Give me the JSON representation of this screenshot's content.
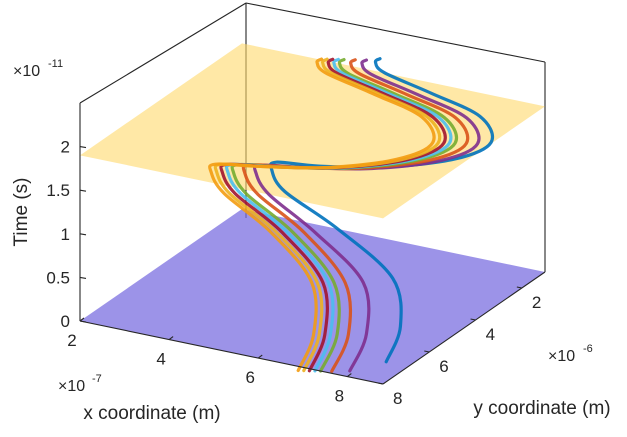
{
  "chart_data": {
    "type": "line3d",
    "title": "",
    "xlabel": "x coordinate (m)",
    "ylabel": "y coordinate (m)",
    "zlabel": "Time (s)",
    "x_exponent_base": "×10",
    "x_exponent": "-7",
    "y_exponent_base": "×10",
    "y_exponent": "-6",
    "z_exponent_base": "×10",
    "z_exponent": "-11",
    "x_ticks": [
      "2",
      "4",
      "6",
      "8"
    ],
    "y_ticks": [
      "2",
      "4",
      "6",
      "8"
    ],
    "z_ticks": [
      "0",
      "0.5",
      "1",
      "1.5",
      "2"
    ],
    "xlim": [
      2,
      8.8
    ],
    "ylim": [
      1,
      8
    ],
    "zlim": [
      0,
      2.5
    ],
    "grid": false,
    "planes": [
      {
        "name": "lower-plane",
        "z": 0,
        "color": "#7b6fe0",
        "opacity": 0.75
      },
      {
        "name": "upper-plane",
        "z": 1.9,
        "color": "#ffd86b",
        "opacity": 0.6
      }
    ],
    "series_colors": [
      "#0072bd",
      "#7e2f8e",
      "#d95319",
      "#77ac30",
      "#4dbeee",
      "#a2142f",
      "#edb120",
      "#f39c12"
    ],
    "series": [
      {
        "color": "#0072bd",
        "x": [
          8.3,
          8.1,
          7.2,
          5.5,
          4.0,
          3.5,
          3.6,
          4.6,
          6.0,
          7.3,
          7.9,
          7.5,
          6.4,
          5.3,
          5.1,
          5.2
        ],
        "y": [
          6.9,
          5.9,
          4.5,
          3.6,
          3.0,
          2.6,
          2.6,
          2.7,
          2.5,
          2.0,
          1.6,
          1.3,
          1.3,
          1.2,
          1.2,
          1.2
        ],
        "z": [
          0,
          0.2,
          0.4,
          0.62,
          0.78,
          0.9,
          1.0,
          1.08,
          1.18,
          1.32,
          1.5,
          1.7,
          1.85,
          1.95,
          2.05,
          2.1
        ]
      },
      {
        "color": "#7e2f8e",
        "x": [
          7.9,
          7.7,
          6.8,
          5.2,
          3.8,
          3.3,
          3.4,
          4.4,
          5.8,
          7.1,
          7.7,
          7.3,
          6.2,
          5.1,
          4.9,
          5.0
        ],
        "y": [
          7.7,
          6.6,
          5.0,
          4.0,
          3.3,
          2.9,
          2.9,
          2.9,
          2.7,
          2.2,
          1.8,
          1.5,
          1.5,
          1.4,
          1.4,
          1.4
        ],
        "z": [
          0,
          0.2,
          0.4,
          0.62,
          0.78,
          0.9,
          1.0,
          1.08,
          1.18,
          1.32,
          1.5,
          1.7,
          1.85,
          1.95,
          2.05,
          2.1
        ]
      },
      {
        "color": "#d95319",
        "x": [
          7.6,
          7.4,
          6.5,
          5.0,
          3.6,
          3.1,
          3.2,
          4.2,
          5.6,
          6.9,
          7.5,
          7.1,
          6.0,
          4.9,
          4.7,
          4.8
        ],
        "y": [
          7.9,
          6.8,
          5.2,
          4.1,
          3.4,
          3.0,
          3.0,
          3.0,
          2.8,
          2.3,
          1.9,
          1.6,
          1.6,
          1.5,
          1.5,
          1.5
        ],
        "z": [
          0,
          0.2,
          0.4,
          0.62,
          0.78,
          0.9,
          1.0,
          1.08,
          1.18,
          1.32,
          1.5,
          1.7,
          1.85,
          1.95,
          2.05,
          2.1
        ]
      },
      {
        "color": "#77ac30",
        "x": [
          7.4,
          7.2,
          6.3,
          4.8,
          3.4,
          2.9,
          3.0,
          4.0,
          5.4,
          6.7,
          7.3,
          6.9,
          5.8,
          4.7,
          4.5,
          4.6
        ],
        "y": [
          8.0,
          6.9,
          5.3,
          4.2,
          3.5,
          3.1,
          3.1,
          3.1,
          2.9,
          2.4,
          2.0,
          1.7,
          1.7,
          1.6,
          1.6,
          1.6
        ],
        "z": [
          0,
          0.2,
          0.4,
          0.62,
          0.78,
          0.9,
          1.0,
          1.08,
          1.18,
          1.32,
          1.5,
          1.7,
          1.85,
          1.95,
          2.05,
          2.1
        ]
      },
      {
        "color": "#4dbeee",
        "x": [
          7.3,
          7.1,
          6.2,
          4.7,
          3.3,
          2.8,
          2.9,
          3.9,
          5.3,
          6.6,
          7.2,
          6.8,
          5.7,
          4.6,
          4.4,
          4.5
        ],
        "y": [
          8.05,
          7.0,
          5.35,
          4.25,
          3.55,
          3.15,
          3.15,
          3.15,
          2.95,
          2.45,
          2.05,
          1.75,
          1.75,
          1.65,
          1.65,
          1.65
        ],
        "z": [
          0,
          0.2,
          0.4,
          0.62,
          0.78,
          0.9,
          1.0,
          1.08,
          1.18,
          1.32,
          1.5,
          1.7,
          1.85,
          1.95,
          2.05,
          2.1
        ]
      },
      {
        "color": "#a2142f",
        "x": [
          7.2,
          7.0,
          6.1,
          4.6,
          3.2,
          2.7,
          2.8,
          3.8,
          5.2,
          6.5,
          7.1,
          6.7,
          5.6,
          4.5,
          4.3,
          4.4
        ],
        "y": [
          8.1,
          7.05,
          5.4,
          4.3,
          3.6,
          3.2,
          3.2,
          3.2,
          3.0,
          2.5,
          2.1,
          1.8,
          1.8,
          1.7,
          1.7,
          1.7
        ],
        "z": [
          0,
          0.2,
          0.4,
          0.62,
          0.78,
          0.9,
          1.0,
          1.08,
          1.18,
          1.32,
          1.5,
          1.7,
          1.85,
          1.95,
          2.05,
          2.1
        ]
      },
      {
        "color": "#edb120",
        "x": [
          7.1,
          6.9,
          6.0,
          4.5,
          3.1,
          2.6,
          2.7,
          3.7,
          5.1,
          6.4,
          7.0,
          6.6,
          5.5,
          4.4,
          4.2,
          4.3
        ],
        "y": [
          8.15,
          7.1,
          5.45,
          4.35,
          3.65,
          3.25,
          3.25,
          3.25,
          3.05,
          2.55,
          2.15,
          1.85,
          1.85,
          1.75,
          1.75,
          1.75
        ],
        "z": [
          0,
          0.2,
          0.4,
          0.62,
          0.78,
          0.9,
          1.0,
          1.08,
          1.18,
          1.32,
          1.5,
          1.7,
          1.85,
          1.95,
          2.05,
          2.1
        ]
      },
      {
        "color": "#f39c12",
        "x": [
          7.0,
          6.8,
          5.9,
          4.4,
          3.0,
          2.5,
          2.6,
          3.6,
          5.0,
          6.3,
          6.9,
          6.5,
          5.4,
          4.3,
          4.1,
          4.2
        ],
        "y": [
          8.2,
          7.15,
          5.5,
          4.4,
          3.7,
          3.3,
          3.3,
          3.3,
          3.1,
          2.6,
          2.2,
          1.9,
          1.9,
          1.8,
          1.8,
          1.8
        ],
        "z": [
          0,
          0.2,
          0.4,
          0.62,
          0.78,
          0.9,
          1.0,
          1.08,
          1.18,
          1.32,
          1.5,
          1.7,
          1.85,
          1.95,
          2.05,
          2.1
        ]
      }
    ]
  }
}
